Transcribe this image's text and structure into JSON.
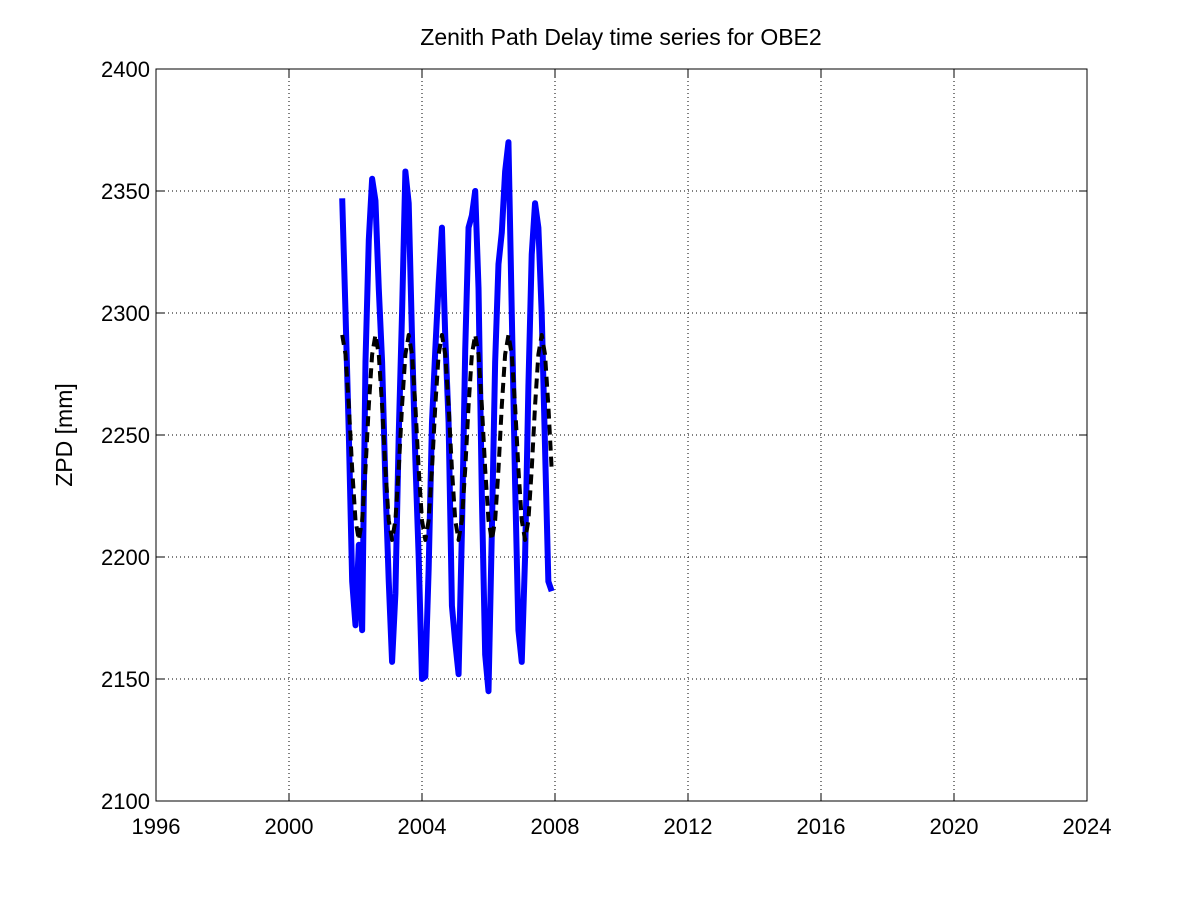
{
  "chart_data": {
    "type": "line",
    "title": "Zenith Path Delay time series for OBE2",
    "y_label": "ZPD [mm]",
    "x": [
      2001.6,
      2001.7,
      2001.8,
      2001.9,
      2002.0,
      2002.1,
      2002.2,
      2002.3,
      2002.4,
      2002.5,
      2002.6,
      2002.7,
      2002.8,
      2002.9,
      2003.0,
      2003.1,
      2003.2,
      2003.3,
      2003.4,
      2003.5,
      2003.6,
      2003.7,
      2003.8,
      2003.9,
      2004.0,
      2004.1,
      2004.2,
      2004.3,
      2004.4,
      2004.5,
      2004.6,
      2004.7,
      2004.8,
      2004.9,
      2005.0,
      2005.1,
      2005.2,
      2005.3,
      2005.4,
      2005.5,
      2005.6,
      2005.7,
      2005.8,
      2005.9,
      2006.0,
      2006.1,
      2006.2,
      2006.3,
      2006.4,
      2006.5,
      2006.6,
      2006.7,
      2006.8,
      2006.9,
      2007.0,
      2007.1,
      2007.2,
      2007.3,
      2007.4,
      2007.5,
      2007.6,
      2007.7,
      2007.8,
      2007.9
    ],
    "series": [
      {
        "color": "#0000ff",
        "line_style": "solid",
        "values": [
          2347,
          2300,
          2250,
          2190,
          2172,
          2205,
          2170,
          2280,
          2330,
          2355,
          2346,
          2310,
          2280,
          2230,
          2190,
          2157,
          2185,
          2250,
          2300,
          2358,
          2345,
          2290,
          2240,
          2200,
          2150,
          2151,
          2195,
          2255,
          2285,
          2312,
          2335,
          2290,
          2255,
          2180,
          2165,
          2152,
          2210,
          2285,
          2335,
          2340,
          2350,
          2310,
          2225,
          2160,
          2145,
          2210,
          2280,
          2320,
          2333,
          2358,
          2370,
          2300,
          2230,
          2170,
          2157,
          2200,
          2270,
          2324,
          2345,
          2335,
          2300,
          2245,
          2190,
          2186
        ]
      },
      {
        "color": "#000000",
        "line_style": "dashed",
        "values": [
          2291,
          2283,
          2262,
          2236,
          2215,
          2207,
          2215,
          2236,
          2262,
          2283,
          2291,
          2283,
          2262,
          2236,
          2215,
          2207,
          2215,
          2236,
          2262,
          2283,
          2291,
          2283,
          2262,
          2236,
          2215,
          2207,
          2215,
          2236,
          2262,
          2283,
          2291,
          2283,
          2262,
          2236,
          2215,
          2207,
          2215,
          2236,
          2262,
          2283,
          2291,
          2283,
          2262,
          2236,
          2215,
          2207,
          2215,
          2236,
          2262,
          2283,
          2291,
          2283,
          2262,
          2236,
          2215,
          2207,
          2215,
          2236,
          2262,
          2283,
          2291,
          2283,
          2262,
          2236
        ]
      }
    ],
    "xlim": [
      1996,
      2024
    ],
    "xticks": [
      1996,
      2000,
      2004,
      2008,
      2012,
      2016,
      2020,
      2024
    ],
    "ylim": [
      2100,
      2400
    ],
    "yticks": [
      2100,
      2150,
      2200,
      2250,
      2300,
      2350,
      2400
    ],
    "grid": true
  }
}
